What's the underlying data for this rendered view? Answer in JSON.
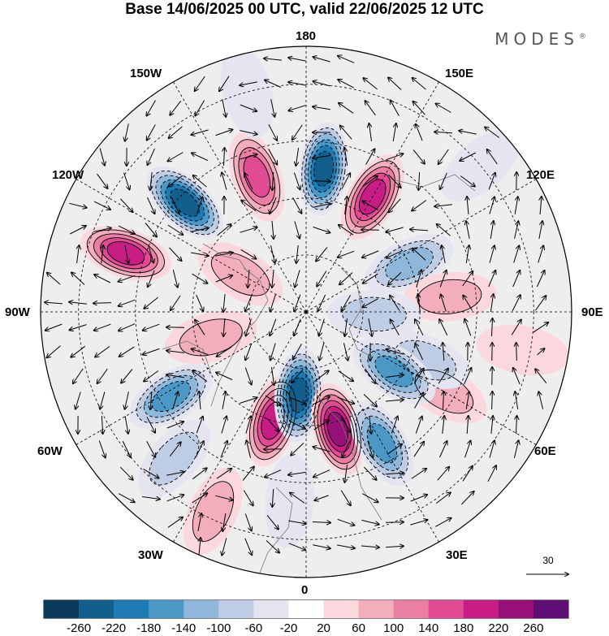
{
  "title": "Base 14/06/2025 00 UTC, valid 22/06/2025 12 UTC",
  "brand": "MODES",
  "longitude_labels": {
    "top": "180",
    "bottom": "0",
    "left": "90W",
    "right": "90E",
    "upper_left_1": "150W",
    "upper_left_2": "120W",
    "upper_right_1": "150E",
    "upper_right_2": "120E",
    "lower_left_1": "60W",
    "lower_left_2": "30W",
    "lower_right_1": "60E",
    "lower_right_2": "30E"
  },
  "vector_reference": {
    "value": "30"
  },
  "colorbar": {
    "colors": [
      "#0b3a5c",
      "#125f8e",
      "#1e7ab3",
      "#4b97c6",
      "#8eb7d9",
      "#bfcde4",
      "#e5e5f1",
      "#ffffff",
      "#fbd8dd",
      "#f3aebd",
      "#eb7ea3",
      "#e14b94",
      "#c81d85",
      "#961078",
      "#5f0e75"
    ],
    "ticks": [
      "-260",
      "-220",
      "-180",
      "-140",
      "-100",
      "-60",
      "-20",
      "20",
      "60",
      "100",
      "140",
      "180",
      "220",
      "260"
    ]
  },
  "anomaly_centers": [
    {
      "lon": 173,
      "lat": 52,
      "value": -240
    },
    {
      "lon": -160,
      "lat": 52,
      "value": 160
    },
    {
      "lon": 150,
      "lat": 55,
      "value": 200
    },
    {
      "lon": -132,
      "lat": 47,
      "value": -250
    },
    {
      "lon": -108,
      "lat": 40,
      "value": 200
    },
    {
      "lon": 115,
      "lat": 60,
      "value": -120
    },
    {
      "lon": 96,
      "lat": 52,
      "value": 80
    },
    {
      "lon": 88,
      "lat": 72,
      "value": -70
    },
    {
      "lon": 60,
      "lat": 48,
      "value": 70
    },
    {
      "lon": 68,
      "lat": 56,
      "value": -60
    },
    {
      "lon": 56,
      "lat": 62,
      "value": -140
    },
    {
      "lon": -58,
      "lat": 48,
      "value": -150
    },
    {
      "lon": -17,
      "lat": 60,
      "value": 180
    },
    {
      "lon": -5,
      "lat": 68,
      "value": -220
    },
    {
      "lon": 15,
      "lat": 58,
      "value": 220
    },
    {
      "lon": 30,
      "lat": 50,
      "value": -140
    },
    {
      "lon": -25,
      "lat": 32,
      "value": 70
    },
    {
      "lon": -42,
      "lat": 38,
      "value": -80
    },
    {
      "lon": -165,
      "lat": 30,
      "value": -50
    },
    {
      "lon": 130,
      "lat": 30,
      "value": -40
    },
    {
      "lon": 80,
      "lat": 32,
      "value": 40
    },
    {
      "lon": -5,
      "lat": 40,
      "value": -50
    },
    {
      "lon": -75,
      "lat": 64,
      "value": 70
    },
    {
      "lon": -120,
      "lat": 70,
      "value": 60
    }
  ]
}
